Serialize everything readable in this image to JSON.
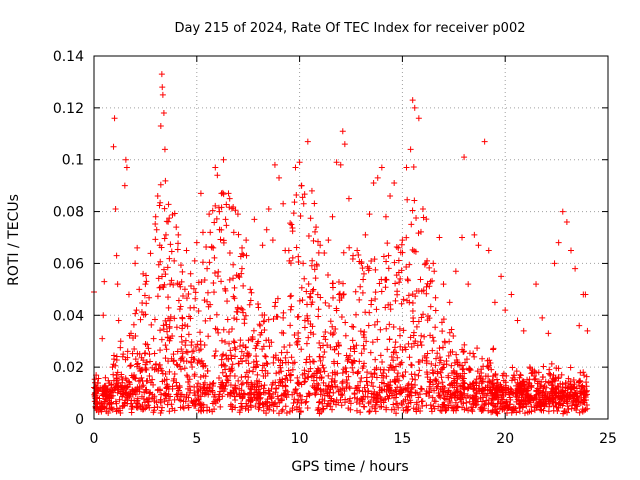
{
  "chart_data": {
    "type": "scatter",
    "title": "Day 215 of 2024, Rate Of TEC Index for receiver p002",
    "xlabel": "GPS time / hours",
    "ylabel": "ROTI / TECUs",
    "xlim": [
      0,
      25
    ],
    "ylim": [
      0,
      0.14
    ],
    "x_ticks": [
      0,
      5,
      10,
      15,
      20,
      25
    ],
    "x_tick_labels": [
      "0",
      "5",
      "10",
      "15",
      "20",
      "25"
    ],
    "y_ticks": [
      0,
      0.02,
      0.04,
      0.06,
      0.08,
      0.1,
      0.12,
      0.14
    ],
    "y_tick_labels": [
      "0",
      "0.02",
      "0.04",
      "0.06",
      "0.08",
      "0.1",
      "0.12",
      "0.14"
    ],
    "grid": true,
    "marker": "plus",
    "color": "#ff0000",
    "series": [
      {
        "points": [
          [
            0.0,
            0.049
          ],
          [
            0.05,
            0.014
          ],
          [
            0.1,
            0.006
          ],
          [
            0.15,
            0.004
          ],
          [
            0.3,
            0.012
          ],
          [
            0.4,
            0.031
          ],
          [
            0.45,
            0.04
          ],
          [
            0.5,
            0.053
          ],
          [
            0.55,
            0.009
          ],
          [
            0.6,
            0.003
          ],
          [
            0.9,
            0.02
          ],
          [
            0.95,
            0.105
          ],
          [
            1.0,
            0.116
          ],
          [
            1.05,
            0.081
          ],
          [
            1.1,
            0.063
          ],
          [
            1.15,
            0.052
          ],
          [
            1.2,
            0.038
          ],
          [
            1.3,
            0.03
          ],
          [
            1.4,
            0.024
          ],
          [
            1.5,
            0.09
          ],
          [
            1.55,
            0.1
          ],
          [
            1.6,
            0.097
          ],
          [
            1.7,
            0.048
          ],
          [
            1.8,
            0.033
          ],
          [
            1.9,
            0.016
          ],
          [
            2.0,
            0.06
          ],
          [
            2.1,
            0.066
          ],
          [
            2.2,
            0.05
          ],
          [
            2.3,
            0.019
          ],
          [
            2.4,
            0.013
          ],
          [
            2.5,
            0.052
          ],
          [
            2.7,
            0.025
          ],
          [
            2.9,
            0.031
          ],
          [
            3.0,
            0.078
          ],
          [
            3.05,
            0.073
          ],
          [
            3.1,
            0.086
          ],
          [
            3.2,
            0.067
          ],
          [
            3.25,
            0.113
          ],
          [
            3.3,
            0.133
          ],
          [
            3.32,
            0.128
          ],
          [
            3.35,
            0.125
          ],
          [
            3.4,
            0.118
          ],
          [
            3.45,
            0.104
          ],
          [
            3.5,
            0.071
          ],
          [
            3.6,
            0.047
          ],
          [
            3.7,
            0.052
          ],
          [
            3.8,
            0.032
          ],
          [
            3.9,
            0.061
          ],
          [
            4.0,
            0.074
          ],
          [
            4.1,
            0.071
          ],
          [
            4.2,
            0.051
          ],
          [
            4.3,
            0.036
          ],
          [
            4.5,
            0.065
          ],
          [
            4.7,
            0.056
          ],
          [
            4.9,
            0.061
          ],
          [
            5.0,
            0.068
          ],
          [
            5.2,
            0.087
          ],
          [
            5.3,
            0.072
          ],
          [
            5.5,
            0.058
          ],
          [
            5.6,
            0.079
          ],
          [
            5.8,
            0.066
          ],
          [
            5.9,
            0.097
          ],
          [
            6.0,
            0.094
          ],
          [
            6.1,
            0.08
          ],
          [
            6.2,
            0.087
          ],
          [
            6.3,
            0.1
          ],
          [
            6.4,
            0.077
          ],
          [
            6.6,
            0.085
          ],
          [
            6.8,
            0.072
          ],
          [
            7.0,
            0.079
          ],
          [
            7.2,
            0.066
          ],
          [
            7.4,
            0.069
          ],
          [
            7.6,
            0.05
          ],
          [
            7.8,
            0.077
          ],
          [
            8.0,
            0.043
          ],
          [
            8.2,
            0.067
          ],
          [
            8.4,
            0.073
          ],
          [
            8.5,
            0.081
          ],
          [
            8.7,
            0.069
          ],
          [
            8.8,
            0.098
          ],
          [
            9.0,
            0.093
          ],
          [
            9.2,
            0.083
          ],
          [
            9.3,
            0.065
          ],
          [
            9.5,
            0.061
          ],
          [
            9.6,
            0.075
          ],
          [
            9.8,
            0.097
          ],
          [
            10.0,
            0.099
          ],
          [
            10.1,
            0.09
          ],
          [
            10.2,
            0.083
          ],
          [
            10.4,
            0.107
          ],
          [
            10.6,
            0.088
          ],
          [
            10.8,
            0.074
          ],
          [
            11.0,
            0.067
          ],
          [
            11.2,
            0.064
          ],
          [
            11.4,
            0.069
          ],
          [
            11.6,
            0.078
          ],
          [
            11.8,
            0.099
          ],
          [
            12.0,
            0.098
          ],
          [
            12.1,
            0.111
          ],
          [
            12.2,
            0.106
          ],
          [
            12.4,
            0.085
          ],
          [
            12.6,
            0.063
          ],
          [
            12.8,
            0.065
          ],
          [
            13.0,
            0.06
          ],
          [
            13.2,
            0.071
          ],
          [
            13.4,
            0.079
          ],
          [
            13.6,
            0.091
          ],
          [
            13.8,
            0.093
          ],
          [
            14.0,
            0.097
          ],
          [
            14.2,
            0.078
          ],
          [
            14.4,
            0.086
          ],
          [
            14.6,
            0.091
          ],
          [
            14.8,
            0.066
          ],
          [
            15.0,
            0.069
          ],
          [
            15.2,
            0.097
          ],
          [
            15.4,
            0.104
          ],
          [
            15.5,
            0.123
          ],
          [
            15.6,
            0.12
          ],
          [
            15.8,
            0.116
          ],
          [
            16.0,
            0.081
          ],
          [
            16.2,
            0.061
          ],
          [
            16.5,
            0.06
          ],
          [
            16.8,
            0.07
          ],
          [
            17.0,
            0.052
          ],
          [
            17.3,
            0.045
          ],
          [
            17.6,
            0.057
          ],
          [
            17.9,
            0.07
          ],
          [
            18.0,
            0.101
          ],
          [
            18.2,
            0.052
          ],
          [
            18.5,
            0.071
          ],
          [
            18.7,
            0.067
          ],
          [
            19.0,
            0.107
          ],
          [
            19.2,
            0.065
          ],
          [
            19.5,
            0.045
          ],
          [
            19.8,
            0.055
          ],
          [
            20.0,
            0.042
          ],
          [
            20.3,
            0.048
          ],
          [
            20.6,
            0.038
          ],
          [
            20.9,
            0.034
          ],
          [
            21.2,
            0.02
          ],
          [
            21.5,
            0.052
          ],
          [
            21.8,
            0.039
          ],
          [
            22.1,
            0.033
          ],
          [
            22.4,
            0.06
          ],
          [
            22.6,
            0.068
          ],
          [
            22.8,
            0.08
          ],
          [
            23.0,
            0.076
          ],
          [
            23.2,
            0.065
          ],
          [
            23.4,
            0.058
          ],
          [
            23.6,
            0.036
          ],
          [
            23.8,
            0.048
          ],
          [
            23.9,
            0.048
          ],
          [
            24.0,
            0.034
          ]
        ]
      }
    ]
  }
}
